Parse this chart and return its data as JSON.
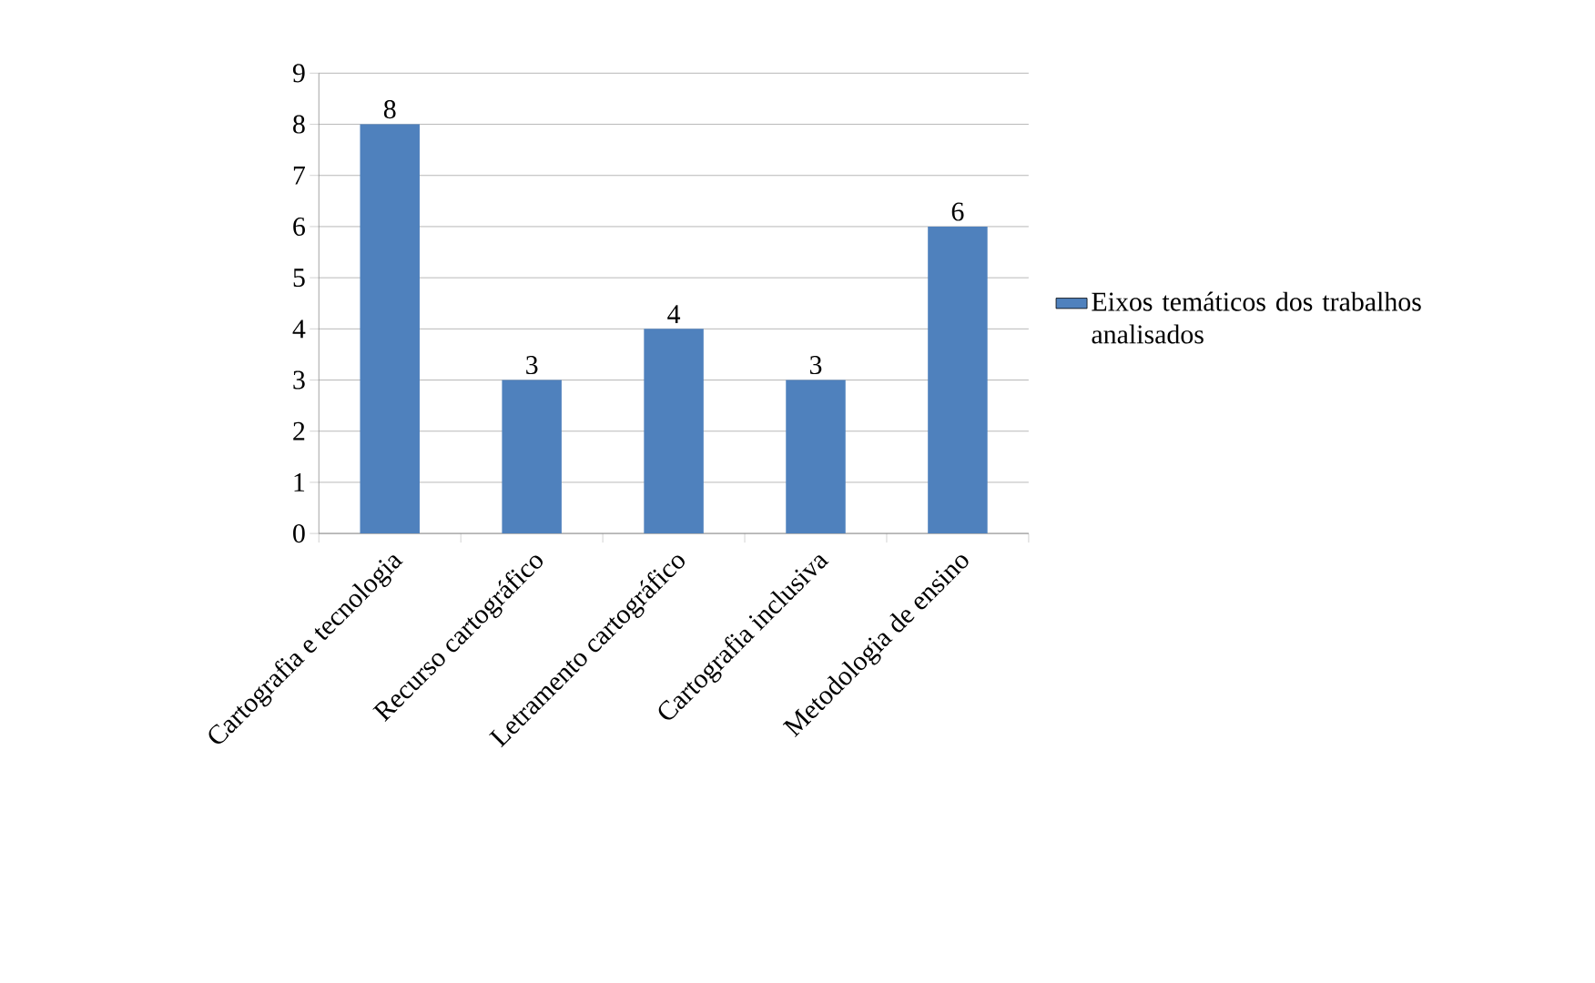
{
  "chart_data": {
    "type": "bar",
    "categories": [
      "Cartografia e tecnologia",
      "Recurso cartográfico",
      "Letramento cartográfico",
      "Cartografia inclusiva",
      "Metodologia de ensino"
    ],
    "series": [
      {
        "name": "Eixos temáticos dos trabalhos analisados",
        "color": "#4f81bd",
        "values": [
          8,
          3,
          4,
          3,
          6
        ]
      }
    ],
    "ylim": [
      0,
      9
    ],
    "yticks": [
      0,
      1,
      2,
      3,
      4,
      5,
      6,
      7,
      8,
      9
    ],
    "grid": "y",
    "legend": "right",
    "data_labels": true
  }
}
